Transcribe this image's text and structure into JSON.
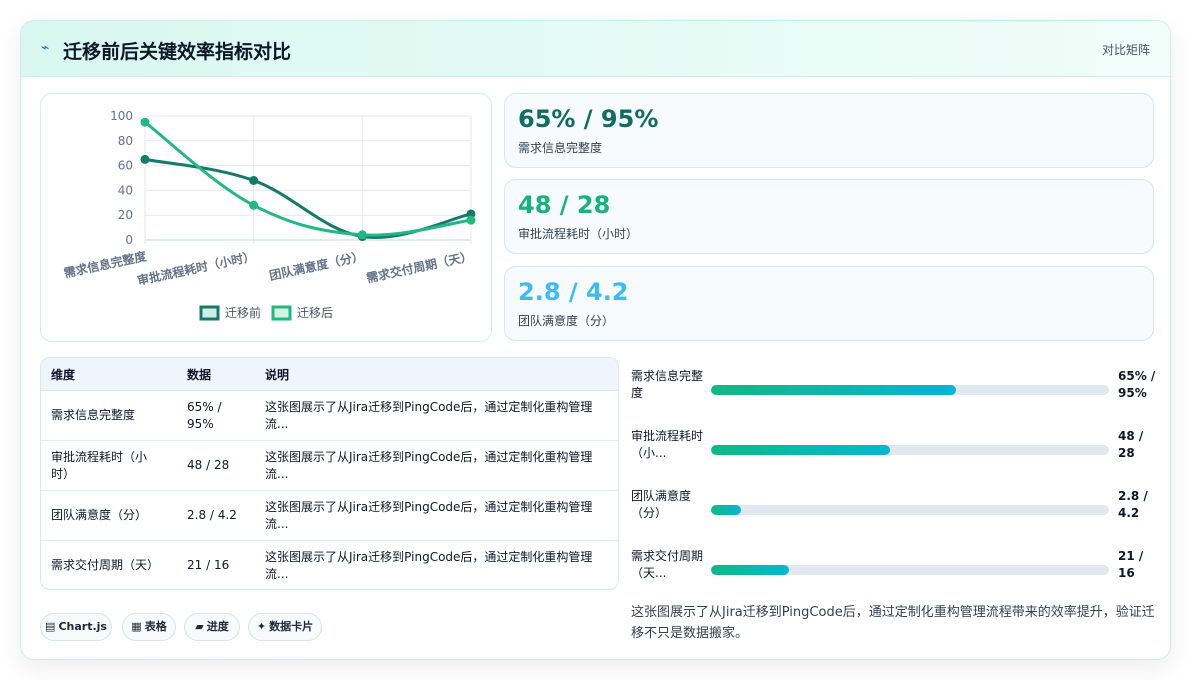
{
  "header": {
    "logo_icon": "⌁",
    "title": "迁移前后关键效率指标对比",
    "right_label": "对比矩阵"
  },
  "chart_data": {
    "type": "line",
    "categories": [
      "需求信息完整度",
      "审批流程耗时（小时）",
      "团队满意度（分）",
      "需求交付周期（天）"
    ],
    "series": [
      {
        "name": "迁移前",
        "values": [
          65,
          48,
          2.8,
          21
        ],
        "color": "#147a6b"
      },
      {
        "name": "迁移后",
        "values": [
          95,
          28,
          4.2,
          16
        ],
        "color": "#22b882"
      }
    ],
    "ylim": [
      0,
      100
    ],
    "yticks": [
      0,
      20,
      40,
      60,
      80,
      100
    ],
    "grid": true,
    "legend": "bottom"
  },
  "kpis": [
    {
      "value": "65% / 95%",
      "label": "需求信息完整度",
      "color": "#0f6e63"
    },
    {
      "value": "48 / 28",
      "label": "审批流程耗时（小时）",
      "color": "#16b47c"
    },
    {
      "value": "2.8 / 4.2",
      "label": "团队满意度（分）",
      "color": "#38bdf8"
    }
  ],
  "table": {
    "headers": [
      "维度",
      "数据",
      "说明"
    ],
    "rows": [
      {
        "dim": "需求信息完整度",
        "data": "65% / 95%",
        "desc": "这张图展示了从Jira迁移到PingCode后，通过定制化重构管理流..."
      },
      {
        "dim": "审批流程耗时（小时）",
        "data": "48 / 28",
        "desc": "这张图展示了从Jira迁移到PingCode后，通过定制化重构管理流..."
      },
      {
        "dim": "团队满意度（分）",
        "data": "2.8 / 4.2",
        "desc": "这张图展示了从Jira迁移到PingCode后，通过定制化重构管理流..."
      },
      {
        "dim": "需求交付周期（天）",
        "data": "21 / 16",
        "desc": "这张图展示了从Jira迁移到PingCode后，通过定制化重构管理流..."
      }
    ]
  },
  "progress": [
    {
      "label": "需求信息完整度",
      "value": "65% / 95%",
      "fill": 0.615
    },
    {
      "label": "审批流程耗时（小...",
      "value": "48 / 28",
      "fill": 0.45
    },
    {
      "label": "团队满意度（分）",
      "value": "2.8 / 4.2",
      "fill": 0.075
    },
    {
      "label": "需求交付周期（天...",
      "value": "21 / 16",
      "fill": 0.195
    }
  ],
  "note": "这张图展示了从Jira迁移到PingCode后，通过定制化重构管理流程带来的效率提升，验证迁移不只是数据搬家。",
  "chips": [
    {
      "icon": "▤",
      "label": "Chart.js"
    },
    {
      "icon": "▦",
      "label": "表格"
    },
    {
      "icon": "▰",
      "label": "进度"
    },
    {
      "icon": "✦",
      "label": "数据卡片"
    }
  ]
}
